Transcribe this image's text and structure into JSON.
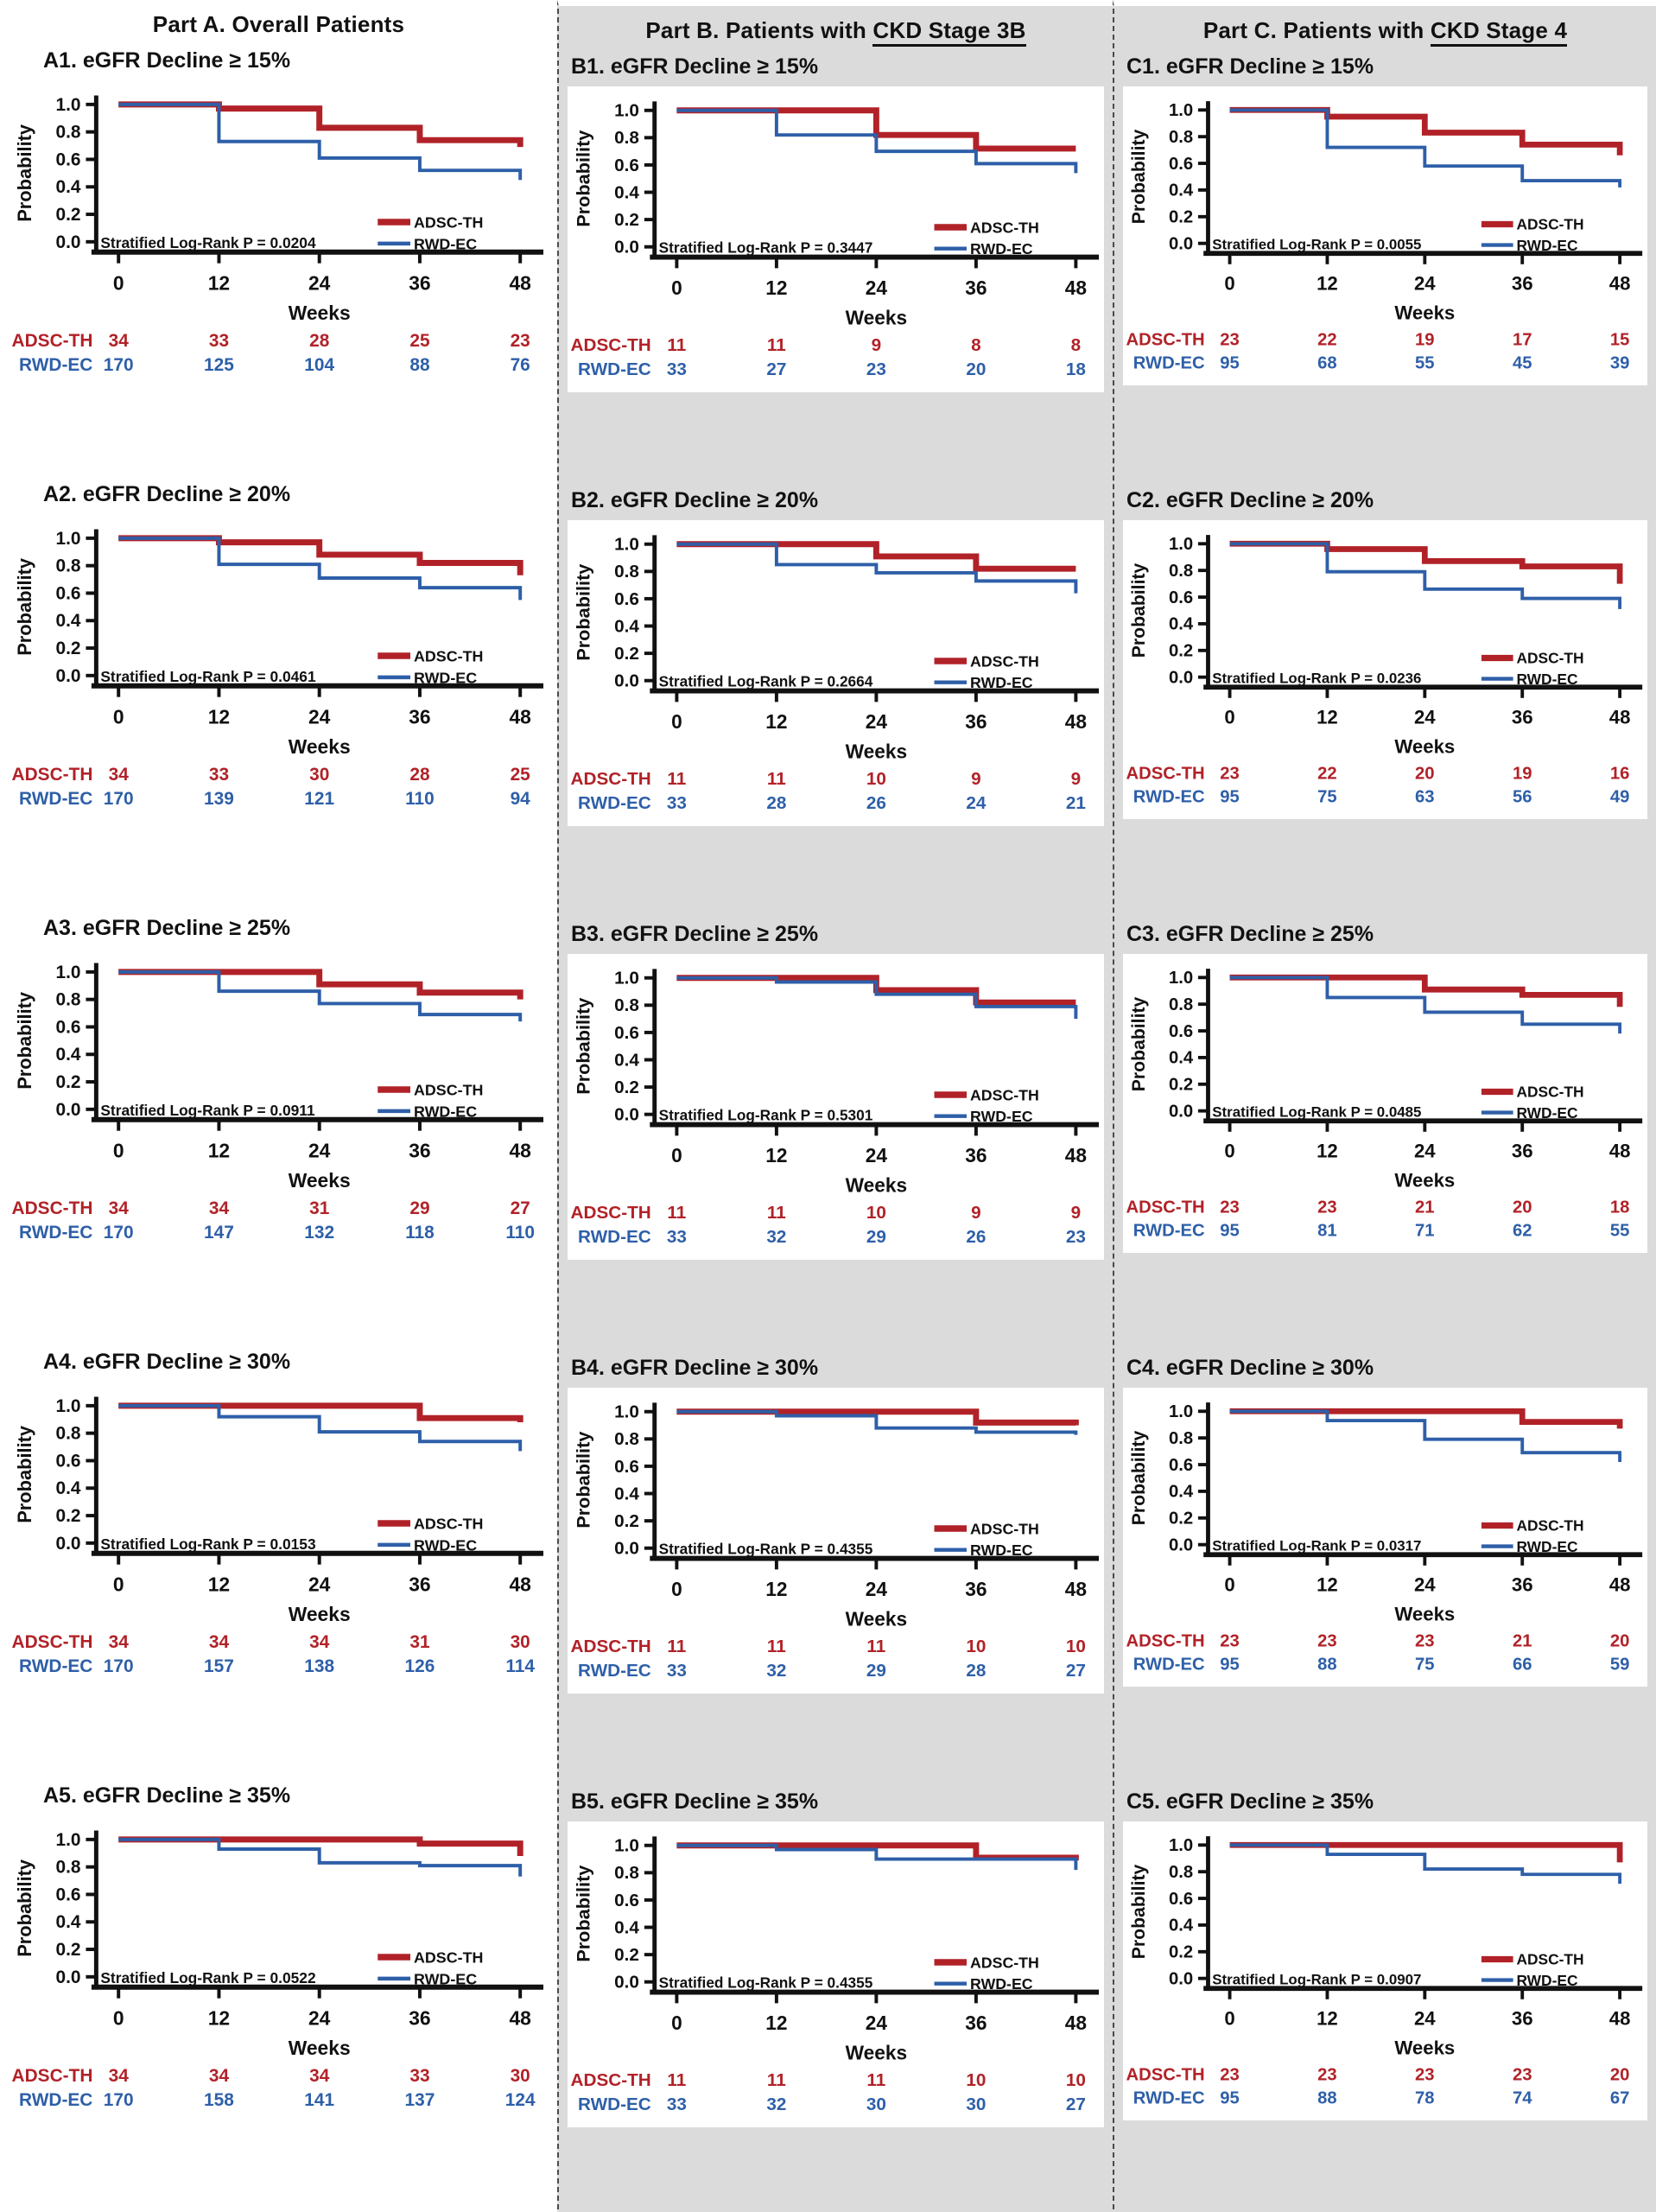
{
  "figure": {
    "ylabel": "Probability",
    "xlabel": "Weeks",
    "x_ticks": [
      0,
      12,
      24,
      36,
      48
    ],
    "y_tick_labels": [
      "0.0",
      "0.2",
      "0.4",
      "0.6",
      "0.8",
      "1.0"
    ],
    "legend": [
      "ADSC-TH",
      "RWD-EC"
    ],
    "colors": {
      "red": "#B12228",
      "blue": "#2E5FA8",
      "axis": "#111111",
      "gray_bg": "#DBDBDB"
    }
  },
  "columns": [
    {
      "key": "A",
      "header_prefix": "Part A. Overall Patients",
      "header_underlined": ""
    },
    {
      "key": "B",
      "header_prefix": "Part B. Patients with ",
      "header_underlined": "CKD Stage 3B"
    },
    {
      "key": "C",
      "header_prefix": "Part C. Patients with ",
      "header_underlined": "CKD Stage 4"
    }
  ],
  "chart_data": [
    {
      "id": "A1",
      "column": "A",
      "type": "line",
      "title": "A1. eGFR Decline ≥ 15%",
      "p_label": "Stratified Log-Rank P = 0.0204",
      "x": [
        0,
        12,
        24,
        36,
        48
      ],
      "xlabel": "Weeks",
      "ylabel": "Probability",
      "ylim": [
        0,
        1
      ],
      "series": [
        {
          "name": "ADSC-TH",
          "color_key": "red",
          "steps": [
            1.0,
            0.97,
            0.83,
            0.74,
            0.69
          ]
        },
        {
          "name": "RWD-EC",
          "color_key": "blue",
          "steps": [
            1.0,
            0.73,
            0.61,
            0.52,
            0.45
          ]
        }
      ],
      "at_risk": [
        {
          "name": "ADSC-TH",
          "color_key": "red",
          "values": [
            34,
            33,
            28,
            25,
            23
          ]
        },
        {
          "name": "RWD-EC",
          "color_key": "blue",
          "values": [
            170,
            125,
            104,
            88,
            76
          ]
        }
      ]
    },
    {
      "id": "A2",
      "column": "A",
      "type": "line",
      "title": "A2. eGFR Decline ≥ 20%",
      "p_label": "Stratified Log-Rank P = 0.0461",
      "x": [
        0,
        12,
        24,
        36,
        48
      ],
      "xlabel": "Weeks",
      "ylabel": "Probability",
      "ylim": [
        0,
        1
      ],
      "series": [
        {
          "name": "ADSC-TH",
          "color_key": "red",
          "steps": [
            1.0,
            0.97,
            0.88,
            0.82,
            0.73
          ]
        },
        {
          "name": "RWD-EC",
          "color_key": "blue",
          "steps": [
            1.0,
            0.81,
            0.71,
            0.64,
            0.55
          ]
        }
      ],
      "at_risk": [
        {
          "name": "ADSC-TH",
          "color_key": "red",
          "values": [
            34,
            33,
            30,
            28,
            25
          ]
        },
        {
          "name": "RWD-EC",
          "color_key": "blue",
          "values": [
            170,
            139,
            121,
            110,
            94
          ]
        }
      ]
    },
    {
      "id": "A3",
      "column": "A",
      "type": "line",
      "title": "A3. eGFR Decline ≥ 25%",
      "p_label": "Stratified Log-Rank P = 0.0911",
      "x": [
        0,
        12,
        24,
        36,
        48
      ],
      "xlabel": "Weeks",
      "ylabel": "Probability",
      "ylim": [
        0,
        1
      ],
      "series": [
        {
          "name": "ADSC-TH",
          "color_key": "red",
          "steps": [
            1.0,
            1.0,
            0.91,
            0.85,
            0.8
          ]
        },
        {
          "name": "RWD-EC",
          "color_key": "blue",
          "steps": [
            1.0,
            0.86,
            0.77,
            0.69,
            0.64
          ]
        }
      ],
      "at_risk": [
        {
          "name": "ADSC-TH",
          "color_key": "red",
          "values": [
            34,
            34,
            31,
            29,
            27
          ]
        },
        {
          "name": "RWD-EC",
          "color_key": "blue",
          "values": [
            170,
            147,
            132,
            118,
            110
          ]
        }
      ]
    },
    {
      "id": "A4",
      "column": "A",
      "type": "line",
      "title": "A4. eGFR Decline ≥ 30%",
      "p_label": "Stratified Log-Rank P = 0.0153",
      "x": [
        0,
        12,
        24,
        36,
        48
      ],
      "xlabel": "Weeks",
      "ylabel": "Probability",
      "ylim": [
        0,
        1
      ],
      "series": [
        {
          "name": "ADSC-TH",
          "color_key": "red",
          "steps": [
            1.0,
            1.0,
            1.0,
            0.91,
            0.88
          ]
        },
        {
          "name": "RWD-EC",
          "color_key": "blue",
          "steps": [
            1.0,
            0.92,
            0.81,
            0.74,
            0.67
          ]
        }
      ],
      "at_risk": [
        {
          "name": "ADSC-TH",
          "color_key": "red",
          "values": [
            34,
            34,
            34,
            31,
            30
          ]
        },
        {
          "name": "RWD-EC",
          "color_key": "blue",
          "values": [
            170,
            157,
            138,
            126,
            114
          ]
        }
      ]
    },
    {
      "id": "A5",
      "column": "A",
      "type": "line",
      "title": "A5. eGFR Decline ≥ 35%",
      "p_label": "Stratified Log-Rank P = 0.0522",
      "x": [
        0,
        12,
        24,
        36,
        48
      ],
      "xlabel": "Weeks",
      "ylabel": "Probability",
      "ylim": [
        0,
        1
      ],
      "series": [
        {
          "name": "ADSC-TH",
          "color_key": "red",
          "steps": [
            1.0,
            1.0,
            1.0,
            0.97,
            0.88
          ]
        },
        {
          "name": "RWD-EC",
          "color_key": "blue",
          "steps": [
            1.0,
            0.93,
            0.83,
            0.81,
            0.73
          ]
        }
      ],
      "at_risk": [
        {
          "name": "ADSC-TH",
          "color_key": "red",
          "values": [
            34,
            34,
            34,
            33,
            30
          ]
        },
        {
          "name": "RWD-EC",
          "color_key": "blue",
          "values": [
            170,
            158,
            141,
            137,
            124
          ]
        }
      ]
    },
    {
      "id": "B1",
      "column": "B",
      "type": "line",
      "title": "B1. eGFR Decline ≥ 15%",
      "p_label": "Stratified Log-Rank P = 0.3447",
      "x": [
        0,
        12,
        24,
        36,
        48
      ],
      "xlabel": "Weeks",
      "ylabel": "Probability",
      "ylim": [
        0,
        1
      ],
      "series": [
        {
          "name": "ADSC-TH",
          "color_key": "red",
          "steps": [
            1.0,
            1.0,
            0.82,
            0.72,
            0.72
          ]
        },
        {
          "name": "RWD-EC",
          "color_key": "blue",
          "steps": [
            1.0,
            0.82,
            0.7,
            0.61,
            0.54
          ]
        }
      ],
      "at_risk": [
        {
          "name": "ADSC-TH",
          "color_key": "red",
          "values": [
            11,
            11,
            9,
            8,
            8
          ]
        },
        {
          "name": "RWD-EC",
          "color_key": "blue",
          "values": [
            33,
            27,
            23,
            20,
            18
          ]
        }
      ]
    },
    {
      "id": "B2",
      "column": "B",
      "type": "line",
      "title": "B2. eGFR Decline ≥ 20%",
      "p_label": "Stratified Log-Rank P = 0.2664",
      "x": [
        0,
        12,
        24,
        36,
        48
      ],
      "xlabel": "Weeks",
      "ylabel": "Probability",
      "ylim": [
        0,
        1
      ],
      "series": [
        {
          "name": "ADSC-TH",
          "color_key": "red",
          "steps": [
            1.0,
            1.0,
            0.91,
            0.82,
            0.82
          ]
        },
        {
          "name": "RWD-EC",
          "color_key": "blue",
          "steps": [
            1.0,
            0.85,
            0.79,
            0.73,
            0.64
          ]
        }
      ],
      "at_risk": [
        {
          "name": "ADSC-TH",
          "color_key": "red",
          "values": [
            11,
            11,
            10,
            9,
            9
          ]
        },
        {
          "name": "RWD-EC",
          "color_key": "blue",
          "values": [
            33,
            28,
            26,
            24,
            21
          ]
        }
      ]
    },
    {
      "id": "B3",
      "column": "B",
      "type": "line",
      "title": "B3. eGFR Decline ≥ 25%",
      "p_label": "Stratified Log-Rank P = 0.5301",
      "x": [
        0,
        12,
        24,
        36,
        48
      ],
      "xlabel": "Weeks",
      "ylabel": "Probability",
      "ylim": [
        0,
        1
      ],
      "series": [
        {
          "name": "ADSC-TH",
          "color_key": "red",
          "steps": [
            1.0,
            1.0,
            0.91,
            0.82,
            0.82
          ]
        },
        {
          "name": "RWD-EC",
          "color_key": "blue",
          "steps": [
            1.0,
            0.97,
            0.88,
            0.79,
            0.7
          ]
        }
      ],
      "at_risk": [
        {
          "name": "ADSC-TH",
          "color_key": "red",
          "values": [
            11,
            11,
            10,
            9,
            9
          ]
        },
        {
          "name": "RWD-EC",
          "color_key": "blue",
          "values": [
            33,
            32,
            29,
            26,
            23
          ]
        }
      ]
    },
    {
      "id": "B4",
      "column": "B",
      "type": "line",
      "title": "B4. eGFR Decline ≥ 30%",
      "p_label": "Stratified Log-Rank P = 0.4355",
      "x": [
        0,
        12,
        24,
        36,
        48
      ],
      "xlabel": "Weeks",
      "ylabel": "Probability",
      "ylim": [
        0,
        1
      ],
      "series": [
        {
          "name": "ADSC-TH",
          "color_key": "red",
          "steps": [
            1.0,
            1.0,
            1.0,
            0.92,
            0.9
          ]
        },
        {
          "name": "RWD-EC",
          "color_key": "blue",
          "steps": [
            1.0,
            0.97,
            0.88,
            0.85,
            0.83
          ]
        }
      ],
      "at_risk": [
        {
          "name": "ADSC-TH",
          "color_key": "red",
          "values": [
            11,
            11,
            11,
            10,
            10
          ]
        },
        {
          "name": "RWD-EC",
          "color_key": "blue",
          "values": [
            33,
            32,
            29,
            28,
            27
          ]
        }
      ]
    },
    {
      "id": "B5",
      "column": "B",
      "type": "line",
      "title": "B5. eGFR Decline ≥ 35%",
      "p_label": "Stratified Log-Rank P = 0.4355",
      "x": [
        0,
        12,
        24,
        36,
        48
      ],
      "xlabel": "Weeks",
      "ylabel": "Probability",
      "ylim": [
        0,
        1
      ],
      "series": [
        {
          "name": "ADSC-TH",
          "color_key": "red",
          "steps": [
            1.0,
            1.0,
            1.0,
            0.91,
            0.89
          ]
        },
        {
          "name": "RWD-EC",
          "color_key": "blue",
          "steps": [
            1.0,
            0.97,
            0.9,
            0.9,
            0.82
          ]
        }
      ],
      "at_risk": [
        {
          "name": "ADSC-TH",
          "color_key": "red",
          "values": [
            11,
            11,
            11,
            10,
            10
          ]
        },
        {
          "name": "RWD-EC",
          "color_key": "blue",
          "values": [
            33,
            32,
            30,
            30,
            27
          ]
        }
      ]
    },
    {
      "id": "C1",
      "column": "C",
      "type": "line",
      "title": "C1. eGFR Decline ≥ 15%",
      "p_label": "Stratified Log-Rank P = 0.0055",
      "x": [
        0,
        12,
        24,
        36,
        48
      ],
      "xlabel": "Weeks",
      "ylabel": "Probability",
      "ylim": [
        0,
        1
      ],
      "series": [
        {
          "name": "ADSC-TH",
          "color_key": "red",
          "steps": [
            1.0,
            0.95,
            0.83,
            0.74,
            0.66
          ]
        },
        {
          "name": "RWD-EC",
          "color_key": "blue",
          "steps": [
            1.0,
            0.72,
            0.58,
            0.47,
            0.42
          ]
        }
      ],
      "at_risk": [
        {
          "name": "ADSC-TH",
          "color_key": "red",
          "values": [
            23,
            22,
            19,
            17,
            15
          ]
        },
        {
          "name": "RWD-EC",
          "color_key": "blue",
          "values": [
            95,
            68,
            55,
            45,
            39
          ]
        }
      ]
    },
    {
      "id": "C2",
      "column": "C",
      "type": "line",
      "title": "C2. eGFR Decline ≥ 20%",
      "p_label": "Stratified Log-Rank P = 0.0236",
      "x": [
        0,
        12,
        24,
        36,
        48
      ],
      "xlabel": "Weeks",
      "ylabel": "Probability",
      "ylim": [
        0,
        1
      ],
      "series": [
        {
          "name": "ADSC-TH",
          "color_key": "red",
          "steps": [
            1.0,
            0.96,
            0.87,
            0.83,
            0.7
          ]
        },
        {
          "name": "RWD-EC",
          "color_key": "blue",
          "steps": [
            1.0,
            0.79,
            0.66,
            0.59,
            0.51
          ]
        }
      ],
      "at_risk": [
        {
          "name": "ADSC-TH",
          "color_key": "red",
          "values": [
            23,
            22,
            20,
            19,
            16
          ]
        },
        {
          "name": "RWD-EC",
          "color_key": "blue",
          "values": [
            95,
            75,
            63,
            56,
            49
          ]
        }
      ]
    },
    {
      "id": "C3",
      "column": "C",
      "type": "line",
      "title": "C3. eGFR Decline ≥ 25%",
      "p_label": "Stratified Log-Rank P = 0.0485",
      "x": [
        0,
        12,
        24,
        36,
        48
      ],
      "xlabel": "Weeks",
      "ylabel": "Probability",
      "ylim": [
        0,
        1
      ],
      "series": [
        {
          "name": "ADSC-TH",
          "color_key": "red",
          "steps": [
            1.0,
            1.0,
            0.91,
            0.87,
            0.78
          ]
        },
        {
          "name": "RWD-EC",
          "color_key": "blue",
          "steps": [
            1.0,
            0.85,
            0.74,
            0.65,
            0.58
          ]
        }
      ],
      "at_risk": [
        {
          "name": "ADSC-TH",
          "color_key": "red",
          "values": [
            23,
            23,
            21,
            20,
            18
          ]
        },
        {
          "name": "RWD-EC",
          "color_key": "blue",
          "values": [
            95,
            81,
            71,
            62,
            55
          ]
        }
      ]
    },
    {
      "id": "C4",
      "column": "C",
      "type": "line",
      "title": "C4. eGFR Decline ≥ 30%",
      "p_label": "Stratified Log-Rank P = 0.0317",
      "x": [
        0,
        12,
        24,
        36,
        48
      ],
      "xlabel": "Weeks",
      "ylabel": "Probability",
      "ylim": [
        0,
        1
      ],
      "series": [
        {
          "name": "ADSC-TH",
          "color_key": "red",
          "steps": [
            1.0,
            1.0,
            1.0,
            0.92,
            0.87
          ]
        },
        {
          "name": "RWD-EC",
          "color_key": "blue",
          "steps": [
            1.0,
            0.93,
            0.79,
            0.69,
            0.62
          ]
        }
      ],
      "at_risk": [
        {
          "name": "ADSC-TH",
          "color_key": "red",
          "values": [
            23,
            23,
            23,
            21,
            20
          ]
        },
        {
          "name": "RWD-EC",
          "color_key": "blue",
          "values": [
            95,
            88,
            75,
            66,
            59
          ]
        }
      ]
    },
    {
      "id": "C5",
      "column": "C",
      "type": "line",
      "title": "C5. eGFR Decline ≥ 35%",
      "p_label": "Stratified Log-Rank P = 0.0907",
      "x": [
        0,
        12,
        24,
        36,
        48
      ],
      "xlabel": "Weeks",
      "ylabel": "Probability",
      "ylim": [
        0,
        1
      ],
      "series": [
        {
          "name": "ADSC-TH",
          "color_key": "red",
          "steps": [
            1.0,
            1.0,
            1.0,
            1.0,
            0.87
          ]
        },
        {
          "name": "RWD-EC",
          "color_key": "blue",
          "steps": [
            1.0,
            0.93,
            0.82,
            0.78,
            0.71
          ]
        }
      ],
      "at_risk": [
        {
          "name": "ADSC-TH",
          "color_key": "red",
          "values": [
            23,
            23,
            23,
            23,
            20
          ]
        },
        {
          "name": "RWD-EC",
          "color_key": "blue",
          "values": [
            95,
            88,
            78,
            74,
            67
          ]
        }
      ]
    }
  ]
}
